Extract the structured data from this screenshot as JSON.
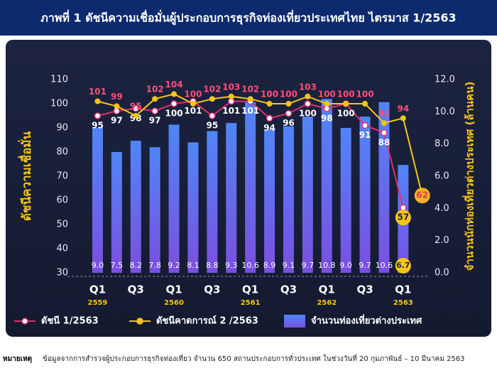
{
  "chart_data": {
    "type": "bar_line",
    "title": "ภาพที่ 1 ดัชนีความเชื่อมั่นผู้ประกอบการธุรกิจท่องเที่ยวประเทศไทย ไตรมาส 1/2563",
    "y_label": "ดัชนีความเชื่อมั่น",
    "y2_label": "จำนวนนักท่องเที่ยวต่างประเทศ (ล้านคน)",
    "categories": [
      "Q1",
      null,
      "Q3",
      null,
      "Q1",
      null,
      "Q3",
      null,
      "Q1",
      null,
      "Q3",
      null,
      "Q1",
      null,
      "Q3",
      null,
      "Q1",
      null
    ],
    "years": [
      "2559",
      null,
      null,
      null,
      "2560",
      null,
      null,
      null,
      "2561",
      null,
      null,
      null,
      "2562",
      null,
      null,
      null,
      "2563",
      null
    ],
    "ylim": [
      30,
      110
    ],
    "yticks": [
      30,
      40,
      50,
      60,
      70,
      80,
      90,
      100,
      110
    ],
    "y2lim": [
      0,
      12
    ],
    "y2ticks": [
      {
        "value": 0,
        "label": "0.0"
      },
      {
        "value": 2,
        "label": "2.0"
      },
      {
        "value": 4,
        "label": "4.0"
      },
      {
        "value": 6,
        "label": "6.0"
      },
      {
        "value": 8,
        "label": "8.0"
      },
      {
        "value": 10,
        "label": "10.0"
      },
      {
        "value": 12,
        "label": "12.0"
      }
    ],
    "series": [
      {
        "name": "ดัชนี 1/2563",
        "type": "line",
        "color": "#e0306e",
        "values": [
          95,
          97,
          98,
          97,
          100,
          101,
          95,
          101,
          101,
          94,
          96,
          100,
          98,
          100,
          91,
          88,
          57,
          null
        ]
      },
      {
        "name": "ดัชนีคาดการณ์ 2 /2563",
        "type": "line",
        "color": "#f5c518",
        "values": [
          101,
          99,
          95,
          102,
          104,
          100,
          102,
          103,
          102,
          100,
          100,
          103,
          100,
          100,
          100,
          92,
          94,
          62
        ]
      },
      {
        "name": "จำนวนท่องเที่ยวต่างประเทศ",
        "type": "bar",
        "axis": "y2",
        "color": "#4f86f7",
        "values": [
          9,
          7.5,
          8.2,
          7.8,
          9.2,
          8.1,
          8.8,
          9.3,
          10.6,
          8.9,
          9.1,
          9.7,
          10.8,
          9,
          9.7,
          10.6,
          6.7,
          null
        ],
        "value_labels": [
          "9.0",
          "7.5",
          "8.2",
          "7.8",
          "9.2",
          "8.1",
          "8.8",
          "9.3",
          "10.6",
          "8.9",
          "9.1",
          "9.7",
          "10.8",
          "9.0",
          "9.7",
          "10.6",
          "6.7",
          null
        ]
      }
    ],
    "note": {
      "label": "หมายเหตุ",
      "text": "ข้อมูลจากการสำรวจผู้ประกอบการธุรกิจท่องเที่ยว จำนวน 650  สถานประกอบการทั่วประเทศ ในช่วงวันที่ 20 กุมภาพันธ์ – 10 มีนาคม 2563"
    }
  }
}
